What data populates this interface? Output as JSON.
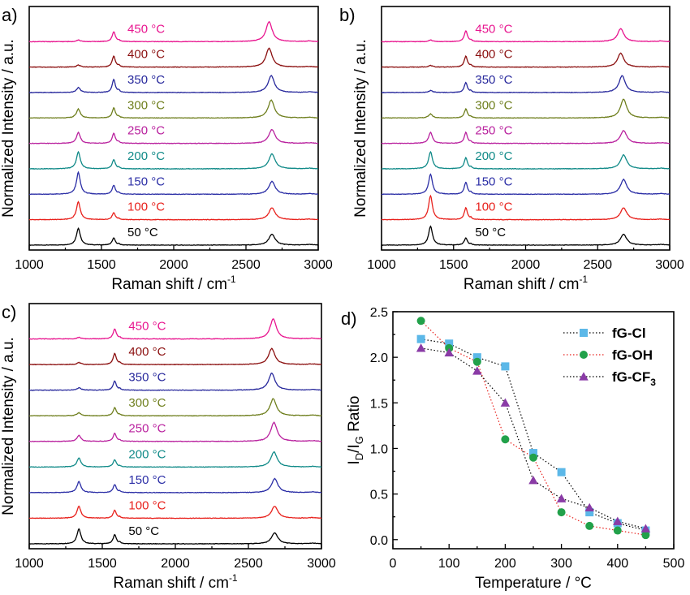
{
  "chart_data": [
    {
      "panel": "a)",
      "type": "line",
      "xlabel": "Raman shift / cm",
      "xlabel_sup": "-1",
      "ylabel": "Normalized Intensity / a.u.",
      "xlim": [
        1000,
        3000
      ],
      "xticks": [
        "1000",
        "1500",
        "2000",
        "2500",
        "3000"
      ],
      "peaks": {
        "D": 1340,
        "G": 1585,
        "2D": 2680
      },
      "series": [
        {
          "name": "50 °C",
          "color": "#000000",
          "D": 0.85,
          "G": 0.35,
          "G2D": 0.55,
          "shift2D": 0
        },
        {
          "name": "100 °C",
          "color": "#e8211c",
          "D": 0.9,
          "G": 0.35,
          "G2D": 0.6,
          "shift2D": 0
        },
        {
          "name": "150 °C",
          "color": "#2b2ea6",
          "D": 1.1,
          "G": 0.45,
          "G2D": 0.65,
          "shift2D": 0
        },
        {
          "name": "200 °C",
          "color": "#108a88",
          "D": 0.85,
          "G": 0.45,
          "G2D": 0.75,
          "shift2D": 0
        },
        {
          "name": "250 °C",
          "color": "#b9219e",
          "D": 0.55,
          "G": 0.5,
          "G2D": 0.7,
          "shift2D": 0
        },
        {
          "name": "300 °C",
          "color": "#6f7f1e",
          "D": 0.45,
          "G": 0.5,
          "G2D": 0.9,
          "shift2D": -5
        },
        {
          "name": "350 °C",
          "color": "#27289c",
          "D": 0.25,
          "G": 0.65,
          "G2D": 0.85,
          "shift2D": -5
        },
        {
          "name": "400 °C",
          "color": "#8b0f0f",
          "D": 0.1,
          "G": 0.55,
          "G2D": 0.95,
          "shift2D": -20
        },
        {
          "name": "450 °C",
          "color": "#e8158f",
          "D": 0.08,
          "G": 0.5,
          "G2D": 1.0,
          "shift2D": -20
        }
      ]
    },
    {
      "panel": "b)",
      "type": "line",
      "xlabel": "Raman shift / cm",
      "xlabel_sup": "-1",
      "ylabel": "Normalized Intensity / a.u.",
      "xlim": [
        1000,
        3000
      ],
      "xticks": [
        "1000",
        "1500",
        "2000",
        "2500",
        "3000"
      ],
      "peaks": {
        "D": 1340,
        "G": 1585,
        "2D": 2680
      },
      "series": [
        {
          "name": "50 °C",
          "color": "#000000",
          "D": 0.95,
          "G": 0.35,
          "G2D": 0.55,
          "shift2D": 0
        },
        {
          "name": "100 °C",
          "color": "#e8211c",
          "D": 1.2,
          "G": 0.6,
          "G2D": 0.6,
          "shift2D": 0
        },
        {
          "name": "150 °C",
          "color": "#2b2ea6",
          "D": 1.0,
          "G": 0.6,
          "G2D": 0.75,
          "shift2D": 0
        },
        {
          "name": "200 °C",
          "color": "#108a88",
          "D": 0.85,
          "G": 0.55,
          "G2D": 0.7,
          "shift2D": 0
        },
        {
          "name": "250 °C",
          "color": "#b9219e",
          "D": 0.55,
          "G": 0.55,
          "G2D": 0.65,
          "shift2D": 0
        },
        {
          "name": "300 °C",
          "color": "#6f7f1e",
          "D": 0.2,
          "G": 0.45,
          "G2D": 0.95,
          "shift2D": 0
        },
        {
          "name": "350 °C",
          "color": "#27289c",
          "D": 0.1,
          "G": 0.5,
          "G2D": 0.85,
          "shift2D": -10
        },
        {
          "name": "400 °C",
          "color": "#8b0f0f",
          "D": 0.08,
          "G": 0.55,
          "G2D": 0.7,
          "shift2D": -20
        },
        {
          "name": "450 °C",
          "color": "#e8158f",
          "D": 0.08,
          "G": 0.55,
          "G2D": 0.65,
          "shift2D": -20
        }
      ]
    },
    {
      "panel": "c)",
      "type": "line",
      "xlabel": "Raman shift / cm",
      "xlabel_sup": "-1",
      "ylabel": "Normalized Intensity / a.u.",
      "xlim": [
        1000,
        3000
      ],
      "xticks": [
        "1000",
        "1500",
        "2000",
        "2500",
        "3000"
      ],
      "peaks": {
        "D": 1340,
        "G": 1585,
        "2D": 2680
      },
      "series": [
        {
          "name": "50 °C",
          "color": "#000000",
          "D": 0.75,
          "G": 0.45,
          "G2D": 0.55,
          "shift2D": 0
        },
        {
          "name": "100 °C",
          "color": "#e8211c",
          "D": 0.6,
          "G": 0.4,
          "G2D": 0.6,
          "shift2D": 0
        },
        {
          "name": "150 °C",
          "color": "#2b2ea6",
          "D": 0.55,
          "G": 0.4,
          "G2D": 0.7,
          "shift2D": 0
        },
        {
          "name": "200 °C",
          "color": "#108a88",
          "D": 0.45,
          "G": 0.35,
          "G2D": 0.75,
          "shift2D": -5
        },
        {
          "name": "250 °C",
          "color": "#b9219e",
          "D": 0.3,
          "G": 0.4,
          "G2D": 0.95,
          "shift2D": -5
        },
        {
          "name": "300 °C",
          "color": "#6f7f1e",
          "D": 0.15,
          "G": 0.4,
          "G2D": 0.85,
          "shift2D": -10
        },
        {
          "name": "350 °C",
          "color": "#27289c",
          "D": 0.12,
          "G": 0.45,
          "G2D": 0.85,
          "shift2D": -20
        },
        {
          "name": "400 °C",
          "color": "#8b0f0f",
          "D": 0.1,
          "G": 0.55,
          "G2D": 0.8,
          "shift2D": -20
        },
        {
          "name": "450 °C",
          "color": "#e8158f",
          "D": 0.08,
          "G": 0.5,
          "G2D": 1.0,
          "shift2D": -10
        }
      ]
    },
    {
      "panel": "d)",
      "type": "line",
      "xlabel": "Temperature / °C",
      "ylabel_parts": [
        "I",
        "D",
        "/I",
        "G",
        " Ratio"
      ],
      "xlim": [
        0,
        500
      ],
      "ylim": [
        -0.1,
        2.5
      ],
      "xticks": [
        0,
        100,
        200,
        300,
        400,
        500
      ],
      "yticks": [
        0.0,
        0.5,
        1.0,
        1.5,
        2.0,
        2.5
      ],
      "legend_position": "top-right",
      "series": [
        {
          "name": "fG-Cl",
          "marker": "square",
          "color": "#5cb8e8",
          "line_color": "#000000",
          "x": [
            50,
            100,
            150,
            200,
            250,
            300,
            350,
            400,
            450
          ],
          "y": [
            2.2,
            2.15,
            2.0,
            1.9,
            0.95,
            0.74,
            0.3,
            0.18,
            0.1
          ]
        },
        {
          "name": "fG-OH",
          "marker": "circle",
          "color": "#22a14a",
          "line_color": "#e8211c",
          "x": [
            50,
            100,
            150,
            200,
            250,
            300,
            350,
            400,
            450
          ],
          "y": [
            2.4,
            2.1,
            1.95,
            1.1,
            0.9,
            0.3,
            0.15,
            0.1,
            0.05
          ]
        },
        {
          "name": "fG-CF",
          "name_sub": "3",
          "marker": "triangle",
          "color": "#8a3ba6",
          "line_color": "#000000",
          "x": [
            50,
            100,
            150,
            200,
            250,
            300,
            350,
            400,
            450
          ],
          "y": [
            2.1,
            2.05,
            1.85,
            1.5,
            0.65,
            0.45,
            0.35,
            0.2,
            0.12
          ]
        }
      ]
    }
  ]
}
